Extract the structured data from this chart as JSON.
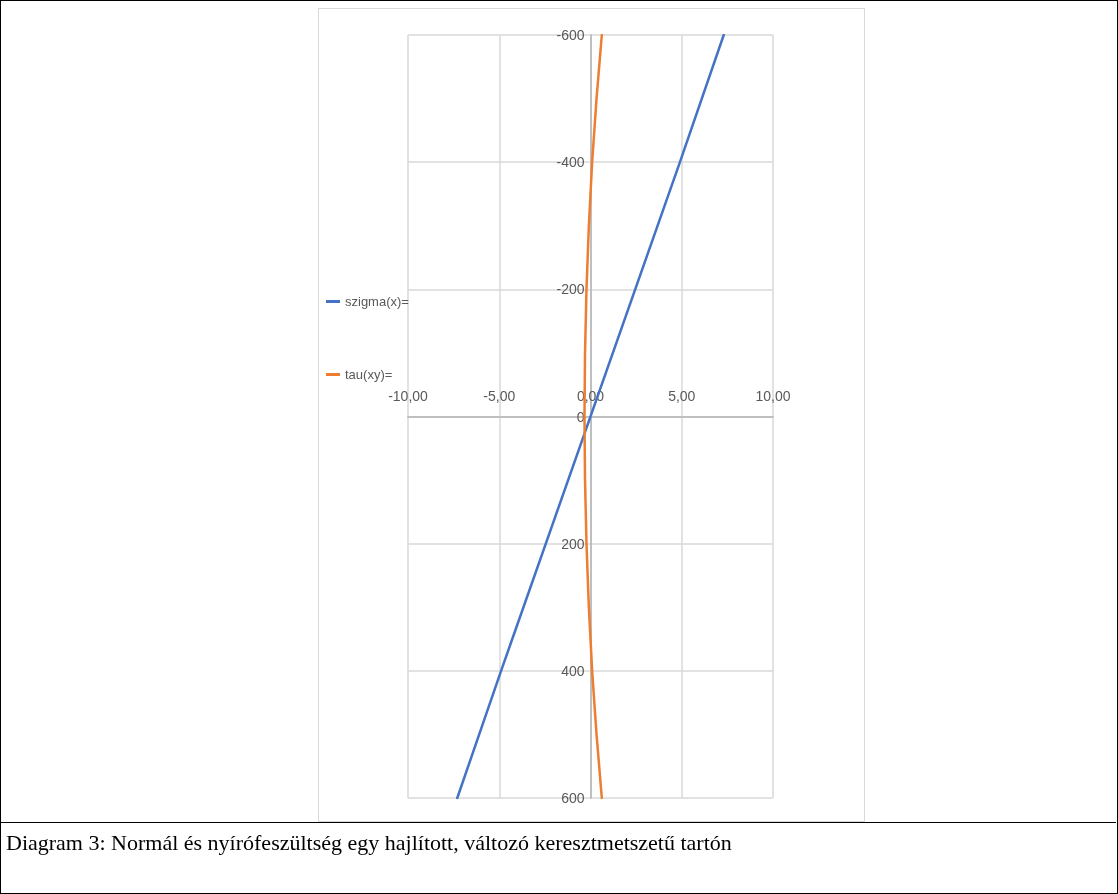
{
  "chart_data": {
    "type": "line",
    "series": [
      {
        "name": "szigma(x)=",
        "color": "#4472c4",
        "x": [
          7.3,
          4.9,
          -4.9,
          -7.3
        ],
        "values": [
          -600,
          -400,
          400,
          600
        ]
      },
      {
        "name": "tau(xy)=",
        "color": "#ed7d31",
        "x": [
          0.62,
          0.33,
          0.09,
          -0.09,
          -0.22,
          -0.3,
          -0.33,
          -0.3,
          -0.22,
          -0.09,
          0.09,
          0.33,
          0.62
        ],
        "values": [
          -600,
          -500,
          -400,
          -300,
          -200,
          -100,
          0,
          100,
          200,
          300,
          400,
          500,
          600
        ]
      }
    ],
    "xlim": [
      -10,
      10
    ],
    "xticks": [
      {
        "value": -10,
        "label": "-10,00"
      },
      {
        "value": -5,
        "label": "-5,00"
      },
      {
        "value": 0,
        "label": "0,00"
      },
      {
        "value": 5,
        "label": "5,00"
      },
      {
        "value": 10,
        "label": "10,00"
      }
    ],
    "ylim": [
      600,
      -600
    ],
    "yticks": [
      -600,
      -400,
      -200,
      0,
      200,
      400,
      600
    ],
    "grid": true,
    "legend": "left",
    "annotations": [
      "Diagram 3: Normál és nyírófeszültség egy hajlított, változó keresztmetszetű tartón"
    ]
  }
}
